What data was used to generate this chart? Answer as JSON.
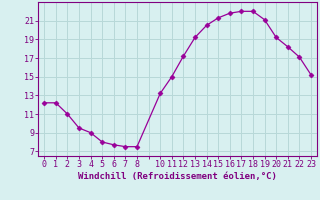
{
  "x": [
    0,
    1,
    2,
    3,
    4,
    5,
    6,
    7,
    8,
    10,
    11,
    12,
    13,
    14,
    15,
    16,
    17,
    18,
    19,
    20,
    21,
    22,
    23
  ],
  "y": [
    12.2,
    12.2,
    11.0,
    9.5,
    9.0,
    8.0,
    7.7,
    7.5,
    7.5,
    13.2,
    15.0,
    17.2,
    19.2,
    20.5,
    21.3,
    21.8,
    22.0,
    22.0,
    21.1,
    19.2,
    18.2,
    17.1,
    15.2
  ],
  "line_color": "#990099",
  "marker": "D",
  "marker_size": 2.5,
  "bg_color": "#d8f0f0",
  "grid_color": "#b8d8d8",
  "xlabel": "Windchill (Refroidissement éolien,°C)",
  "ylim": [
    6.5,
    23
  ],
  "xlim": [
    -0.5,
    23.5
  ],
  "yticks": [
    7,
    9,
    11,
    13,
    15,
    17,
    19,
    21
  ],
  "xtick_labels": [
    "0",
    "1",
    "2",
    "3",
    "4",
    "5",
    "6",
    "7",
    "8",
    "",
    "10",
    "11",
    "12",
    "13",
    "14",
    "15",
    "16",
    "17",
    "18",
    "19",
    "20",
    "21",
    "22",
    "23"
  ],
  "tick_color": "#800080",
  "axis_color": "#800080",
  "label_fontsize": 6.5,
  "tick_fontsize": 6.0
}
